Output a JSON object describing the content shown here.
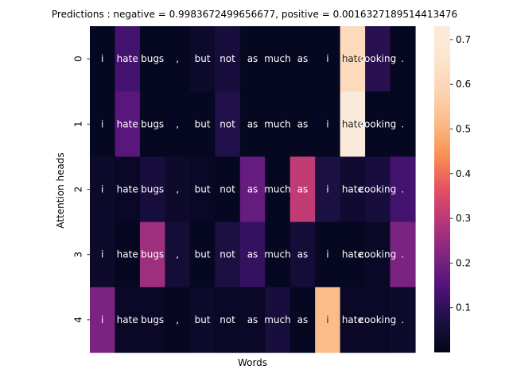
{
  "chart_data": {
    "type": "heatmap",
    "title": "Predictions : negative = 0.9983672499656677, positive = 0.0016327189514413476",
    "xlabel": "Words",
    "ylabel": "Attention heads",
    "x_tick_labels_shown": false,
    "rows": [
      "0",
      "1",
      "2",
      "3",
      "4"
    ],
    "columns": [
      "i",
      "hate",
      "bugs",
      ",",
      "but",
      "not",
      "as",
      "much",
      "as",
      "i",
      "hate",
      "cooking",
      "."
    ],
    "cell_labels": [
      [
        "i",
        "hate",
        "bugs",
        ",",
        "but",
        "not",
        "as",
        "much",
        "as",
        "i",
        "hate",
        "cooking",
        "."
      ],
      [
        "i",
        "hate",
        "bugs",
        ",",
        "but",
        "not",
        "as",
        "much",
        "as",
        "i",
        "hate",
        "cooking",
        "."
      ],
      [
        "i",
        "hate",
        "bugs",
        ",",
        "but",
        "not",
        "as",
        "much",
        "as",
        "i",
        "hate",
        "cooking",
        "."
      ],
      [
        "i",
        "hate",
        "bugs",
        ",",
        "but",
        "not",
        "as",
        "much",
        "as",
        "i",
        "hate",
        "cooking",
        "."
      ],
      [
        "i",
        "hate",
        "bugs",
        ",",
        "but",
        "not",
        "as",
        "much",
        "as",
        "i",
        "hate",
        "cooking",
        "."
      ]
    ],
    "values": [
      [
        0.01,
        0.13,
        0.01,
        0.01,
        0.03,
        0.06,
        0.01,
        0.01,
        0.01,
        0.01,
        0.61,
        0.09,
        0.01
      ],
      [
        0.01,
        0.16,
        0.01,
        0.01,
        0.01,
        0.08,
        0.01,
        0.01,
        0.01,
        0.01,
        0.72,
        0.01,
        0.01
      ],
      [
        0.03,
        0.02,
        0.06,
        0.03,
        0.02,
        0.01,
        0.18,
        0.01,
        0.31,
        0.07,
        0.04,
        0.06,
        0.13
      ],
      [
        0.03,
        0.01,
        0.26,
        0.05,
        0.01,
        0.07,
        0.11,
        0.01,
        0.05,
        0.01,
        0.01,
        0.02,
        0.21
      ],
      [
        0.21,
        0.02,
        0.02,
        0.01,
        0.03,
        0.02,
        0.02,
        0.06,
        0.01,
        0.52,
        0.02,
        0.02,
        0.03
      ]
    ],
    "colormap": "rocket",
    "colorbar": {
      "ticks": [
        "0.1",
        "0.2",
        "0.3",
        "0.4",
        "0.5",
        "0.6",
        "0.7"
      ],
      "range": [
        0.0,
        0.73
      ]
    },
    "grid": false,
    "legend": "colorbar-right"
  }
}
